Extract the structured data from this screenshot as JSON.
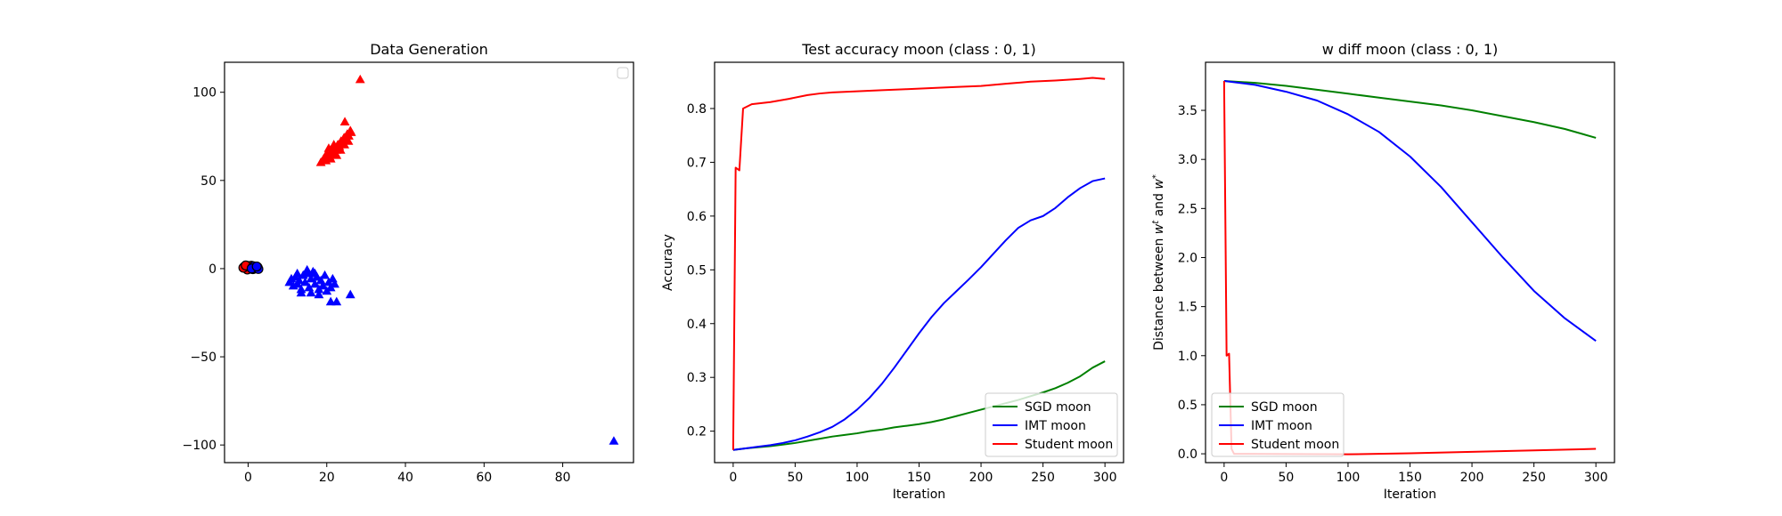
{
  "chart_data": [
    {
      "type": "scatter",
      "title": "Data Generation",
      "xlabel": "",
      "ylabel": "",
      "xlim": [
        -6,
        98
      ],
      "ylim": [
        -110,
        117
      ],
      "xticks": [
        0,
        20,
        40,
        60,
        80
      ],
      "yticks": [
        -100,
        -50,
        0,
        50,
        100
      ],
      "legend": {
        "placement": "top-right",
        "entries": []
      },
      "grid": false,
      "series": [
        {
          "marker": "circle",
          "color": "#ff0000",
          "edge": "#000000",
          "points": [
            [
              -1,
              1
            ],
            [
              -0.5,
              0.5
            ],
            [
              0,
              1.5
            ],
            [
              0.3,
              0.2
            ],
            [
              -0.8,
              0.8
            ],
            [
              0.5,
              1
            ],
            [
              -0.2,
              -0.5
            ],
            [
              -1.2,
              0.5
            ],
            [
              0.8,
              1.6
            ],
            [
              -0.6,
              1.8
            ]
          ]
        },
        {
          "marker": "circle",
          "color": "#0000ff",
          "edge": "#000000",
          "points": [
            [
              1,
              0.5
            ],
            [
              1.5,
              1
            ],
            [
              2,
              0.5
            ],
            [
              1.2,
              -0.3
            ],
            [
              2.4,
              0.8
            ],
            [
              1.8,
              0.2
            ],
            [
              2.6,
              -0.2
            ],
            [
              1.4,
              1.3
            ],
            [
              0.9,
              0.1
            ],
            [
              2.2,
              1.2
            ]
          ]
        },
        {
          "marker": "triangle",
          "color": "#ff0000",
          "points": [
            [
              18.5,
              60
            ],
            [
              19.2,
              62
            ],
            [
              19.8,
              61
            ],
            [
              20.2,
              64
            ],
            [
              20.8,
              63
            ],
            [
              21.2,
              66
            ],
            [
              21.6,
              65
            ],
            [
              22,
              68
            ],
            [
              22.4,
              67
            ],
            [
              22.8,
              70
            ],
            [
              23.2,
              69
            ],
            [
              23.6,
              72
            ],
            [
              24,
              71
            ],
            [
              24.4,
              74
            ],
            [
              24.8,
              73
            ],
            [
              25.2,
              76
            ],
            [
              25.6,
              75
            ],
            [
              26,
              78
            ],
            [
              26.2,
              77
            ],
            [
              20,
              65
            ],
            [
              21,
              62
            ],
            [
              22.5,
              64
            ],
            [
              23.5,
              67
            ],
            [
              24.5,
              70
            ],
            [
              25.5,
              72
            ],
            [
              21.8,
              70
            ],
            [
              20.5,
              68
            ],
            [
              24.6,
              83
            ],
            [
              28.5,
              107
            ]
          ]
        },
        {
          "marker": "triangle",
          "color": "#0000ff",
          "points": [
            [
              10.5,
              -8
            ],
            [
              11,
              -6
            ],
            [
              11.5,
              -10
            ],
            [
              12,
              -5
            ],
            [
              12.5,
              -9
            ],
            [
              13,
              -7
            ],
            [
              13.5,
              -12
            ],
            [
              14,
              -4
            ],
            [
              14.5,
              -8
            ],
            [
              15,
              -3
            ],
            [
              15.5,
              -11
            ],
            [
              16,
              -6
            ],
            [
              16.5,
              -2
            ],
            [
              17,
              -9
            ],
            [
              17.5,
              -5
            ],
            [
              18,
              -12
            ],
            [
              18.5,
              -7
            ],
            [
              19,
              -10
            ],
            [
              19.5,
              -4
            ],
            [
              20,
              -13
            ],
            [
              20.5,
              -8
            ],
            [
              21,
              -11
            ],
            [
              21.5,
              -6
            ],
            [
              22,
              -9
            ],
            [
              13.5,
              -14
            ],
            [
              16,
              -14
            ],
            [
              18,
              -15
            ],
            [
              15,
              -1
            ],
            [
              17,
              -3
            ],
            [
              12.5,
              -3
            ],
            [
              21,
              -19
            ],
            [
              22.5,
              -19
            ],
            [
              26,
              -15
            ],
            [
              93,
              -98
            ]
          ]
        }
      ]
    },
    {
      "type": "line",
      "title": "Test accuracy moon (class : 0, 1)",
      "xlabel": "Iteration",
      "ylabel": "Accuracy",
      "xlim": [
        -15,
        315
      ],
      "ylim": [
        0.1415,
        0.886
      ],
      "xticks": [
        0,
        50,
        100,
        150,
        200,
        250,
        300
      ],
      "yticks": [
        0.2,
        0.3,
        0.4,
        0.5,
        0.6,
        0.7,
        0.8
      ],
      "ytick_labels": [
        "0.2",
        "0.3",
        "0.4",
        "0.5",
        "0.6",
        "0.7",
        "0.8"
      ],
      "legend": {
        "placement": "lower-right"
      },
      "grid": false,
      "series": [
        {
          "name": "SGD moon",
          "color": "#008000",
          "points": [
            [
              0,
              0.165
            ],
            [
              10,
              0.168
            ],
            [
              20,
              0.17
            ],
            [
              30,
              0.172
            ],
            [
              40,
              0.175
            ],
            [
              50,
              0.178
            ],
            [
              60,
              0.182
            ],
            [
              70,
              0.186
            ],
            [
              80,
              0.19
            ],
            [
              90,
              0.193
            ],
            [
              100,
              0.196
            ],
            [
              110,
              0.2
            ],
            [
              120,
              0.203
            ],
            [
              130,
              0.207
            ],
            [
              140,
              0.21
            ],
            [
              150,
              0.213
            ],
            [
              160,
              0.217
            ],
            [
              170,
              0.222
            ],
            [
              180,
              0.228
            ],
            [
              190,
              0.234
            ],
            [
              200,
              0.24
            ],
            [
              210,
              0.246
            ],
            [
              220,
              0.252
            ],
            [
              230,
              0.258
            ],
            [
              240,
              0.265
            ],
            [
              250,
              0.272
            ],
            [
              260,
              0.28
            ],
            [
              270,
              0.29
            ],
            [
              280,
              0.302
            ],
            [
              290,
              0.318
            ],
            [
              300,
              0.33
            ]
          ]
        },
        {
          "name": "IMT moon",
          "color": "#0000ff",
          "points": [
            [
              0,
              0.165
            ],
            [
              10,
              0.168
            ],
            [
              20,
              0.171
            ],
            [
              30,
              0.174
            ],
            [
              40,
              0.178
            ],
            [
              50,
              0.183
            ],
            [
              60,
              0.19
            ],
            [
              70,
              0.198
            ],
            [
              80,
              0.208
            ],
            [
              90,
              0.222
            ],
            [
              100,
              0.24
            ],
            [
              110,
              0.262
            ],
            [
              120,
              0.288
            ],
            [
              130,
              0.318
            ],
            [
              140,
              0.35
            ],
            [
              150,
              0.382
            ],
            [
              160,
              0.412
            ],
            [
              170,
              0.438
            ],
            [
              180,
              0.46
            ],
            [
              190,
              0.482
            ],
            [
              200,
              0.505
            ],
            [
              210,
              0.53
            ],
            [
              220,
              0.555
            ],
            [
              230,
              0.578
            ],
            [
              240,
              0.592
            ],
            [
              250,
              0.6
            ],
            [
              260,
              0.615
            ],
            [
              270,
              0.635
            ],
            [
              280,
              0.652
            ],
            [
              290,
              0.665
            ],
            [
              300,
              0.67
            ]
          ]
        },
        {
          "name": "Student moon",
          "color": "#ff0000",
          "points": [
            [
              0,
              0.165
            ],
            [
              2,
              0.69
            ],
            [
              5,
              0.685
            ],
            [
              8,
              0.8
            ],
            [
              15,
              0.808
            ],
            [
              30,
              0.812
            ],
            [
              45,
              0.818
            ],
            [
              60,
              0.825
            ],
            [
              70,
              0.828
            ],
            [
              80,
              0.83
            ],
            [
              100,
              0.832
            ],
            [
              120,
              0.834
            ],
            [
              140,
              0.836
            ],
            [
              160,
              0.838
            ],
            [
              180,
              0.84
            ],
            [
              200,
              0.842
            ],
            [
              220,
              0.846
            ],
            [
              240,
              0.85
            ],
            [
              260,
              0.852
            ],
            [
              280,
              0.855
            ],
            [
              290,
              0.857
            ],
            [
              300,
              0.855
            ]
          ]
        }
      ]
    },
    {
      "type": "line",
      "title": "w diff moon (class : 0, 1)",
      "xlabel": "Iteration",
      "ylabel": "Distance between w^t and w^*",
      "xlim": [
        -15,
        315
      ],
      "ylim": [
        -0.09,
        3.99
      ],
      "xticks": [
        0,
        50,
        100,
        150,
        200,
        250,
        300
      ],
      "yticks": [
        0,
        0.5,
        1,
        1.5,
        2,
        2.5,
        3,
        3.5
      ],
      "ytick_labels": [
        "0.0",
        "0.5",
        "1.0",
        "1.5",
        "2.0",
        "2.5",
        "3.0",
        "3.5"
      ],
      "legend": {
        "placement": "lower-left"
      },
      "grid": false,
      "series": [
        {
          "name": "SGD moon",
          "color": "#008000",
          "points": [
            [
              0,
              3.8
            ],
            [
              25,
              3.78
            ],
            [
              50,
              3.75
            ],
            [
              75,
              3.71
            ],
            [
              100,
              3.67
            ],
            [
              125,
              3.63
            ],
            [
              150,
              3.59
            ],
            [
              175,
              3.55
            ],
            [
              200,
              3.5
            ],
            [
              225,
              3.44
            ],
            [
              250,
              3.38
            ],
            [
              275,
              3.31
            ],
            [
              300,
              3.22
            ]
          ]
        },
        {
          "name": "IMT moon",
          "color": "#0000ff",
          "points": [
            [
              0,
              3.8
            ],
            [
              25,
              3.76
            ],
            [
              50,
              3.69
            ],
            [
              75,
              3.6
            ],
            [
              100,
              3.46
            ],
            [
              125,
              3.28
            ],
            [
              150,
              3.03
            ],
            [
              175,
              2.72
            ],
            [
              200,
              2.36
            ],
            [
              225,
              2.0
            ],
            [
              250,
              1.66
            ],
            [
              275,
              1.38
            ],
            [
              300,
              1.15
            ]
          ]
        },
        {
          "name": "Student moon",
          "color": "#ff0000",
          "points": [
            [
              0,
              3.8
            ],
            [
              2,
              1.0
            ],
            [
              4,
              1.02
            ],
            [
              6,
              0.05
            ],
            [
              8,
              0.0
            ],
            [
              100,
              -0.005
            ],
            [
              150,
              0.005
            ],
            [
              200,
              0.02
            ],
            [
              250,
              0.035
            ],
            [
              300,
              0.05
            ]
          ]
        }
      ]
    }
  ]
}
